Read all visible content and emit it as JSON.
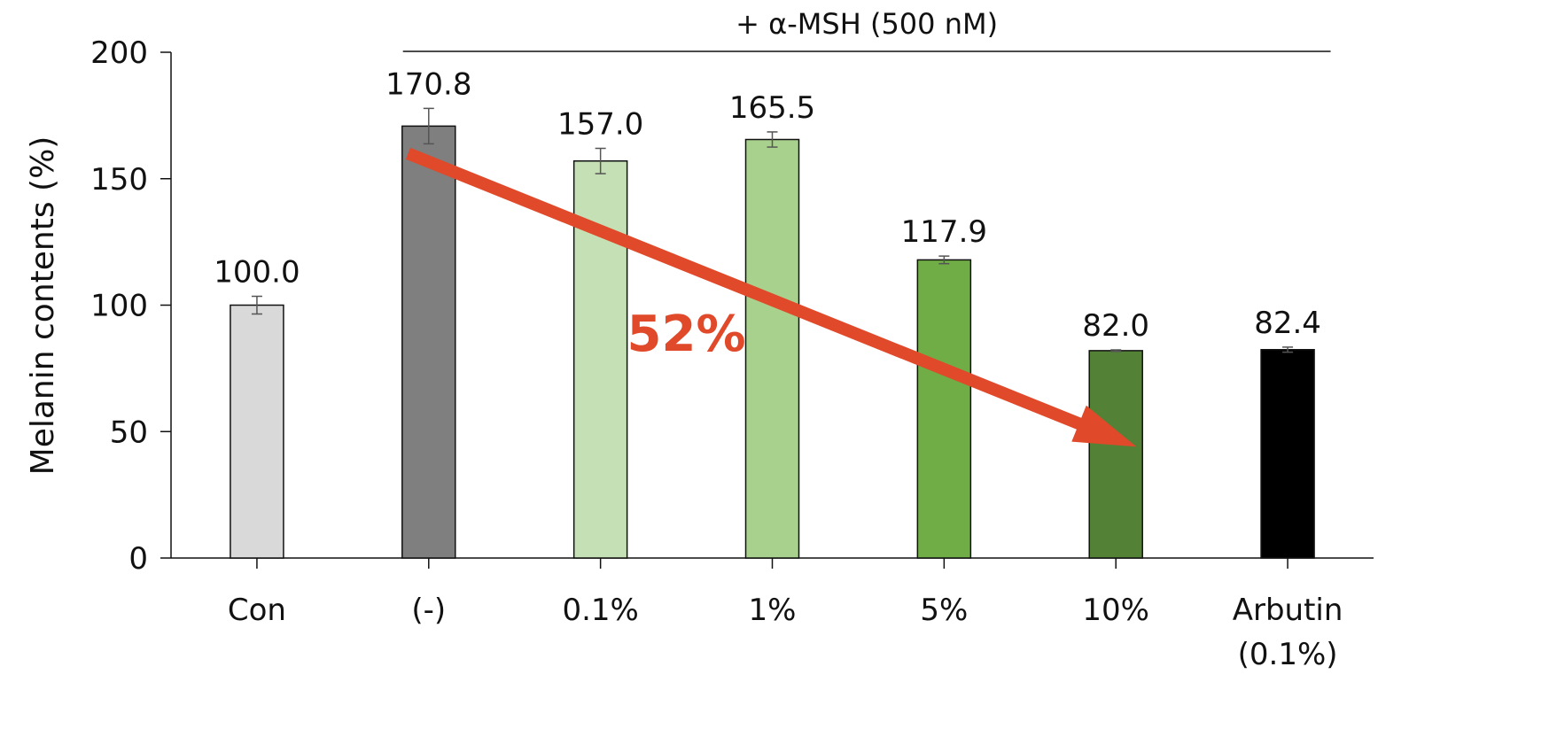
{
  "chart_data": {
    "type": "bar",
    "ylabel": "Melanin contents (%)",
    "ylim": [
      0,
      200
    ],
    "yticks": [
      0,
      50,
      100,
      150,
      200
    ],
    "grid": false,
    "legend": "none",
    "categories": [
      [
        "Con"
      ],
      [
        "(-)"
      ],
      [
        "0.1%"
      ],
      [
        "1%"
      ],
      [
        "5%"
      ],
      [
        "10%"
      ],
      [
        "Arbutin",
        "(0.1%)"
      ]
    ],
    "values": [
      100.0,
      170.8,
      157.0,
      165.5,
      117.9,
      82.0,
      82.4
    ],
    "value_labels": [
      "100.0",
      "170.8",
      "157.0",
      "165.5",
      "117.9",
      "82.0",
      "82.4"
    ],
    "errors": [
      3.5,
      7.0,
      5.0,
      3.0,
      1.5,
      0.3,
      1.0
    ],
    "bar_colors": [
      "#d9d9d9",
      "#7f7f7f",
      "#c5e0b4",
      "#a9d18e",
      "#70ad47",
      "#538135",
      "#000000"
    ],
    "group_header": "+ α-MSH (500 nM)",
    "annotation": {
      "text": "52%",
      "color": "#e0492a",
      "arrow_from": {
        "category": 1,
        "value": 160
      },
      "arrow_to": {
        "category": 5,
        "value": 44
      }
    }
  }
}
